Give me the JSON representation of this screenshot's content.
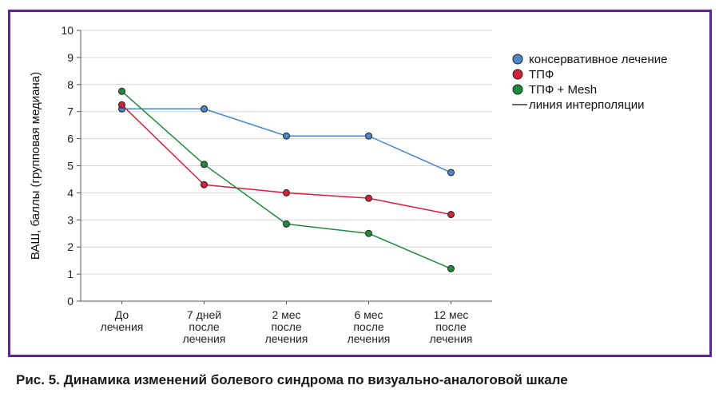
{
  "caption": "Рис. 5. Динамика изменений болевого синдрома по визуально-аналоговой шкале",
  "chart_data": {
    "type": "line",
    "ylabel": "ВАШ, баллы (групповая медиана)",
    "xlabel": "",
    "ylim": [
      0,
      10
    ],
    "yticks": [
      0,
      1,
      2,
      3,
      4,
      5,
      6,
      7,
      8,
      9,
      10
    ],
    "grid": true,
    "legend_position": "right",
    "categories": [
      [
        "До",
        "лечения"
      ],
      [
        "7 дней",
        "после",
        "лечения"
      ],
      [
        "2 мес",
        "после",
        "лечения"
      ],
      [
        "6 мес",
        "после",
        "лечения"
      ],
      [
        "12 мес",
        "после",
        "лечения"
      ]
    ],
    "series": [
      {
        "name": "консервативное лечение",
        "color": "#4a86c8",
        "values": [
          7.1,
          7.1,
          6.1,
          6.1,
          4.75
        ]
      },
      {
        "name": "ТПФ",
        "color": "#d0223a",
        "values": [
          7.25,
          4.3,
          4.0,
          3.8,
          3.2
        ]
      },
      {
        "name": "ТПФ + Mesh",
        "color": "#1e8a3c",
        "values": [
          7.75,
          5.05,
          2.85,
          2.5,
          1.2
        ]
      }
    ],
    "interpolation_legend": "линия интерполяции"
  }
}
